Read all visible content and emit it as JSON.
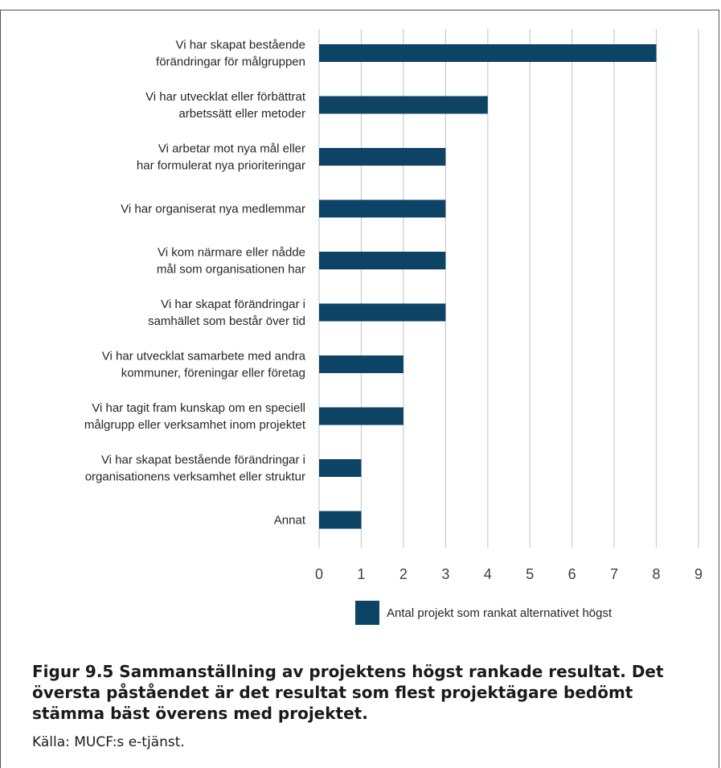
{
  "chart_data": {
    "type": "bar",
    "orientation": "horizontal",
    "categories": [
      [
        "Vi har skapat bestående",
        "förändringar för målgruppen"
      ],
      [
        "Vi har utvecklat eller förbättrat",
        "arbetssätt eller metoder"
      ],
      [
        "Vi arbetar  mot nya mål  eller",
        "har formulerat nya prioriteringar"
      ],
      [
        "Vi har organiserat nya medlemmar"
      ],
      [
        "Vi kom närmare eller nådde",
        "mål som organisationen har"
      ],
      [
        "Vi har skapat förändringar i",
        "samhället som består över tid"
      ],
      [
        "Vi har utvecklat samarbete med andra",
        "kommuner, föreningar eller företag"
      ],
      [
        "Vi har tagit fram kunskap om en speciell",
        "målgrupp eller verksamhet inom projektet"
      ],
      [
        "Vi har skapat bestående förändringar i",
        "organisationens verksamhet eller struktur"
      ],
      [
        "Annat"
      ]
    ],
    "series": [
      {
        "name": "Antal projekt som rankat alternativet högst",
        "values": [
          8,
          4,
          3,
          3,
          3,
          3,
          2,
          2,
          1,
          1
        ]
      }
    ],
    "xlim": [
      0,
      9
    ],
    "xticks": [
      "0",
      "1",
      "2",
      "3",
      "4",
      "5",
      "6",
      "7",
      "8",
      "9"
    ],
    "grid": "vertical",
    "legend_position": "bottom",
    "bar_color": "#0d4466",
    "grid_color": "#d0d0d0"
  },
  "caption": {
    "title": "Figur 9.5 Sammanställning av projektens högst rankade resultat. Det översta påståendet är det resultat som flest projektägare bedömt stämma bäst överens med projektet.",
    "source": "Källa: MUCF:s e-tjänst."
  }
}
